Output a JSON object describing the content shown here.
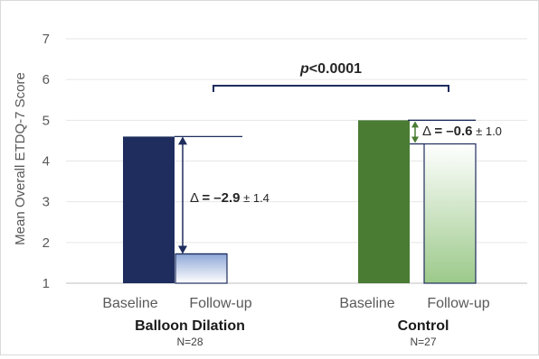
{
  "chart_data": {
    "type": "bar",
    "ylabel": "Mean Overall ETDQ-7 Score",
    "ylim": [
      1,
      7
    ],
    "yticks": [
      "1",
      "2",
      "3",
      "4",
      "5",
      "6",
      "7"
    ],
    "grid": true,
    "categories": [
      "Baseline",
      "Follow-up",
      "Baseline",
      "Follow-up"
    ],
    "groups": [
      {
        "name": "Balloon Dilation",
        "n": "N=28",
        "values": [
          4.6,
          1.72
        ],
        "colors": [
          "#1f2d5e",
          "#a9bde4"
        ],
        "delta": {
          "prefix": "Δ = ",
          "value": "–2.9",
          "sd": " ± 1.4"
        }
      },
      {
        "name": "Control",
        "n": "N=27",
        "values": [
          5.0,
          4.42
        ],
        "colors": [
          "#4a7c34",
          "#b8d6a6"
        ],
        "delta": {
          "prefix": "Δ = ",
          "value": "–0.6",
          "sd": " ± 1.0"
        }
      }
    ],
    "pvalue": {
      "p": "p",
      "rest": "<0.0001"
    }
  }
}
